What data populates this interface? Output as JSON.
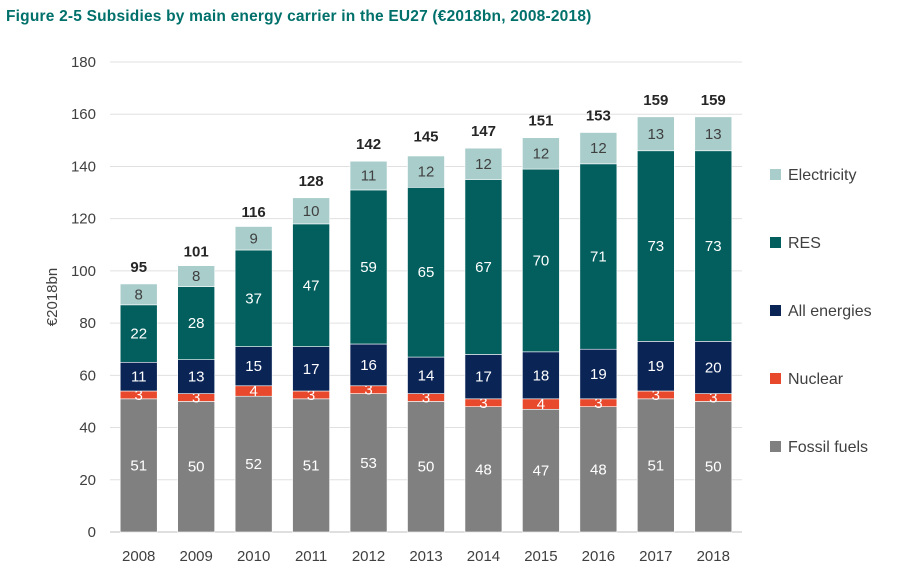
{
  "title": "Figure 2-5 Subsidies by main energy carrier in the EU27 (€2018bn, 2008-2018)",
  "chart_data": {
    "type": "bar",
    "stacked": true,
    "title": "Figure 2-5 Subsidies by main energy carrier in the EU27 (€2018bn, 2008-2018)",
    "xlabel": "",
    "ylabel": "€2018bn",
    "ylim": [
      0,
      180
    ],
    "yticks": [
      0,
      20,
      40,
      60,
      80,
      100,
      120,
      140,
      160,
      180
    ],
    "categories": [
      "2008",
      "2009",
      "2010",
      "2011",
      "2012",
      "2013",
      "2014",
      "2015",
      "2016",
      "2017",
      "2018"
    ],
    "series": [
      {
        "name": "Fossil fuels",
        "color": "#808080",
        "label_color": "#ffffff",
        "values": [
          51,
          50,
          52,
          51,
          53,
          50,
          48,
          47,
          48,
          51,
          50
        ]
      },
      {
        "name": "Nuclear",
        "color": "#e8492c",
        "label_color": "#ffffff",
        "values": [
          3,
          3,
          4,
          3,
          3,
          3,
          3,
          4,
          3,
          3,
          3
        ]
      },
      {
        "name": "All energies",
        "color": "#0a2456",
        "label_color": "#ffffff",
        "values": [
          11,
          13,
          15,
          17,
          16,
          14,
          17,
          18,
          19,
          19,
          20
        ]
      },
      {
        "name": "RES",
        "color": "#035e5e",
        "label_color": "#ffffff",
        "values": [
          22,
          28,
          37,
          47,
          59,
          65,
          67,
          70,
          71,
          73,
          73
        ]
      },
      {
        "name": "Electricity",
        "color": "#a8cdcb",
        "label_color": "#404040",
        "values": [
          8,
          8,
          9,
          10,
          11,
          12,
          12,
          12,
          12,
          13,
          13
        ]
      }
    ],
    "totals": [
      95,
      101,
      116,
      128,
      142,
      145,
      147,
      151,
      153,
      159,
      159
    ],
    "legend": [
      "Electricity",
      "RES",
      "All energies",
      "Nuclear",
      "Fossil fuels"
    ],
    "legend_position": "right",
    "grid": true
  }
}
